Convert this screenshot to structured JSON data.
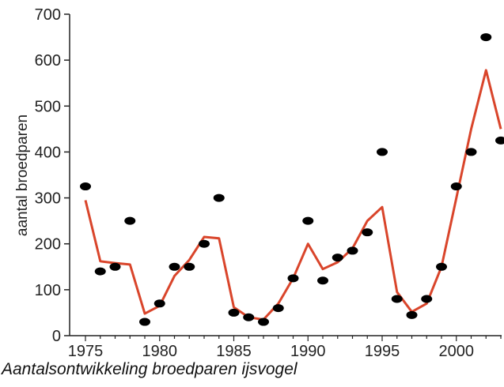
{
  "caption": "Aantalsontwikkeling broedparen ijsvogel",
  "chart_data": {
    "type": "scatter",
    "title": "",
    "xlabel": "",
    "ylabel": "aantal broedparen",
    "xlim": [
      1975,
      2003
    ],
    "ylim": [
      0,
      700
    ],
    "x_ticks": [
      1975,
      1980,
      1985,
      1990,
      1995,
      2000
    ],
    "y_ticks": [
      0,
      100,
      200,
      300,
      400,
      500,
      600,
      700
    ],
    "grid": false,
    "legend": "none",
    "colors": {
      "points": "#000000",
      "line": "#d9452b",
      "axis": "#222222"
    },
    "series": [
      {
        "kind": "points",
        "x": [
          1975,
          1976,
          1977,
          1978,
          1979,
          1980,
          1981,
          1982,
          1983,
          1984,
          1985,
          1986,
          1987,
          1988,
          1989,
          1990,
          1991,
          1992,
          1993,
          1994,
          1995,
          1996,
          1997,
          1998,
          1999,
          2000,
          2001,
          2002,
          2003
        ],
        "y": [
          325,
          140,
          150,
          250,
          30,
          70,
          150,
          150,
          200,
          300,
          50,
          40,
          30,
          60,
          125,
          250,
          120,
          170,
          185,
          225,
          400,
          80,
          45,
          80,
          150,
          325,
          400,
          650,
          425
        ]
      },
      {
        "kind": "line",
        "x": [
          1975,
          1976,
          1977,
          1978,
          1979,
          1980,
          1981,
          1982,
          1983,
          1984,
          1985,
          1986,
          1987,
          1988,
          1989,
          1990,
          1991,
          1992,
          1993,
          1994,
          1995,
          1996,
          1997,
          1998,
          1999,
          2000,
          2001,
          2002,
          2003
        ],
        "y": [
          295,
          162,
          158,
          155,
          48,
          65,
          130,
          165,
          215,
          212,
          62,
          40,
          35,
          70,
          125,
          200,
          145,
          160,
          190,
          250,
          280,
          95,
          52,
          70,
          150,
          300,
          450,
          578,
          450
        ]
      }
    ]
  }
}
